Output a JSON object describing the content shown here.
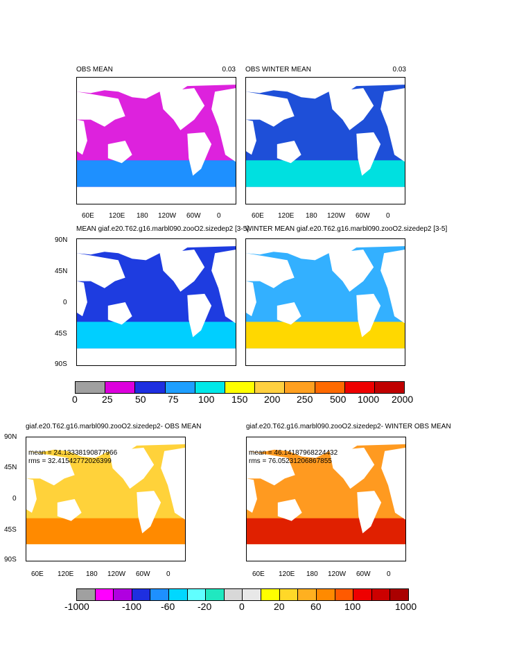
{
  "panels": [
    {
      "title": "OBS MEAN",
      "corner": "0.03",
      "bg": "#dd22dd",
      "band": "#1e90ff"
    },
    {
      "title": "OBS WINTER MEAN",
      "corner": "0.03",
      "bg": "#1e4fd8",
      "band": "#00e0e0"
    },
    {
      "title": "MEAN giaf.e20.T62.g16.marbl090.zooO2.sizedep2 [3-5]",
      "bg": "#1e3ce0",
      "band": "#00cfff"
    },
    {
      "title": "WINTER MEAN giaf.e20.T62.g16.marbl090.zooO2.sizedep2 [3-5]",
      "bg": "#33b0ff",
      "band": "#ffd800"
    },
    {
      "title": "giaf.e20.T62.g16.marbl090.zooO2.sizedep2- OBS MEAN",
      "mean": "mean = 24.13338190877966",
      "rms": "rms = 32.41542772026399",
      "bg": "#ffd23a",
      "band": "#ff8a00"
    },
    {
      "title": "giaf.e20.T62.g16.marbl090.zooO2.sizedep2- WINTER OBS MEAN",
      "mean": "mean = 46.14187968224432",
      "rms": "rms = 76.05231206867855",
      "bg": "#ff9a20",
      "band": "#e02000"
    }
  ],
  "lon_labels": [
    "60E",
    "120E",
    "180",
    "120W",
    "60W",
    "0"
  ],
  "lat_labels": [
    "90N",
    "45N",
    "0",
    "45S",
    "90S"
  ],
  "colorbar1": {
    "colors": [
      "#a0a0a0",
      "#dd00dd",
      "#1e2fe0",
      "#1e9fff",
      "#00e8e8",
      "#ffff00",
      "#ffd040",
      "#ffa020",
      "#ff6a00",
      "#ee0000",
      "#c00000"
    ],
    "labels": [
      "0",
      "25",
      "50",
      "75",
      "100",
      "150",
      "200",
      "250",
      "500",
      "1000",
      "2000"
    ]
  },
  "colorbar2": {
    "colors": [
      "#a0a0a0",
      "#ff00ff",
      "#b000e0",
      "#1e2fe0",
      "#1e90ff",
      "#00d8ff",
      "#60ffff",
      "#20e8c0",
      "#d8d8d8",
      "#e8e8e8",
      "#ffff00",
      "#ffd828",
      "#ffb020",
      "#ff8a00",
      "#ff5a00",
      "#ee0000",
      "#cc0000",
      "#aa0000"
    ],
    "labels": [
      "-1000",
      "-100",
      "-60",
      "-20",
      "0",
      "20",
      "60",
      "100",
      "1000"
    ]
  }
}
